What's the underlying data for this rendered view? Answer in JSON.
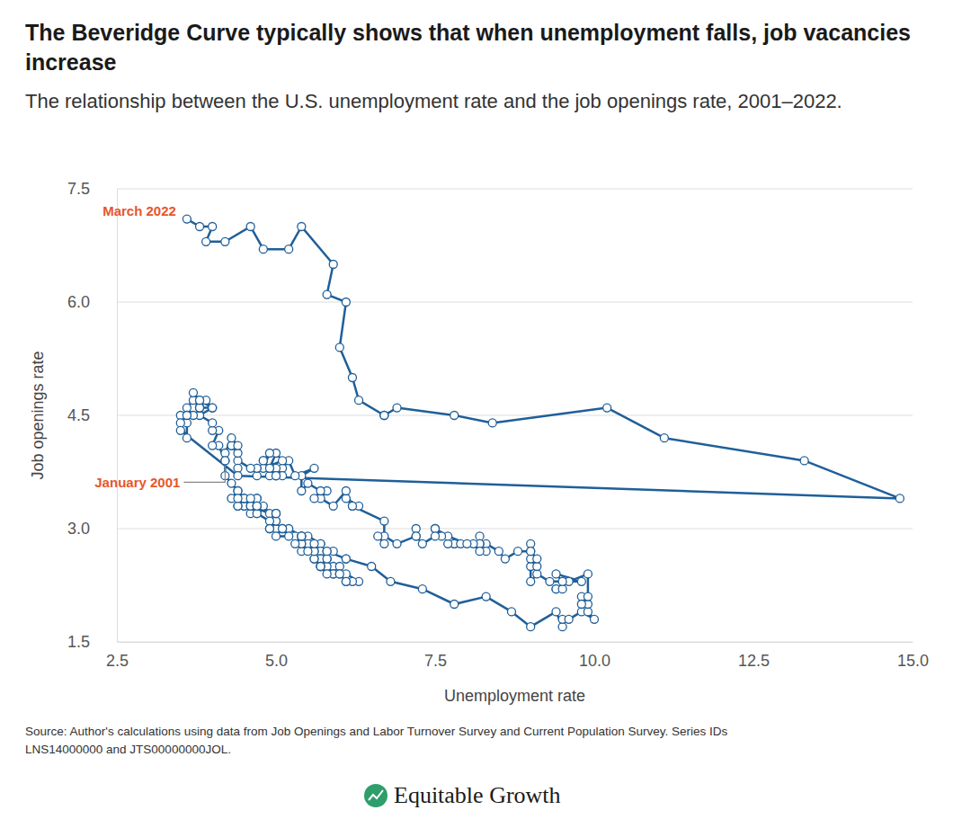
{
  "chart_data": {
    "type": "line",
    "title": "The Beveridge Curve typically shows that when unemployment falls, job vacancies increase",
    "subtitle": "The relationship between the U.S. unemployment rate and the job openings rate, 2001–2022.",
    "x_label": "Unemployment rate",
    "y_label": "Job openings rate",
    "source": [
      "Source: Author's calculations using data from Job Openings and Labor Turnover Survey and Current Population Survey. Series IDs",
      "LNS14000000 and JTS00000000JOL."
    ],
    "brand": "Equitable Growth",
    "color": "#1f5f99",
    "marker": "circle",
    "grid": true,
    "xlim": [
      2.5,
      15
    ],
    "ylim": [
      1.5,
      7.5
    ],
    "xticks": [
      2.5,
      {
        "value": 5,
        "label": "5.0"
      },
      7.5,
      {
        "value": 10,
        "label": "10.0"
      },
      12.5,
      {
        "value": 15,
        "label": "15.0"
      }
    ],
    "yticks": [
      1.5,
      {
        "value": 3,
        "label": "3.0"
      },
      4.5,
      {
        "value": 6,
        "label": "6.0"
      },
      7.5
    ],
    "annotations": [
      {
        "text": "March 2022",
        "x": 3.6,
        "y": 7.1,
        "color": "#e8562a"
      },
      {
        "text": "January 2001",
        "x": 4.2,
        "y": 3.9,
        "color": "#e8562a"
      }
    ],
    "x": [
      4.2,
      4.2,
      4.3,
      4.4,
      4.3,
      4.5,
      4.6,
      4.9,
      5.0,
      5.3,
      5.5,
      5.7,
      5.7,
      5.7,
      5.7,
      5.9,
      5.8,
      5.8,
      5.8,
      5.7,
      5.7,
      5.7,
      5.9,
      6.0,
      5.8,
      5.9,
      5.9,
      6.0,
      6.1,
      6.3,
      6.2,
      6.1,
      6.1,
      6.0,
      5.8,
      5.7,
      5.7,
      5.6,
      5.8,
      5.6,
      5.6,
      5.6,
      5.5,
      5.4,
      5.4,
      5.5,
      5.4,
      5.4,
      5.3,
      5.4,
      5.2,
      5.2,
      5.1,
      5.0,
      5.0,
      4.9,
      5.0,
      5.0,
      5.0,
      4.9,
      4.7,
      4.8,
      4.7,
      4.7,
      4.6,
      4.6,
      4.7,
      4.7,
      4.5,
      4.4,
      4.5,
      4.4,
      4.6,
      4.5,
      4.4,
      4.5,
      4.4,
      4.6,
      4.7,
      4.6,
      4.7,
      4.7,
      4.7,
      5.0,
      5.0,
      4.9,
      5.1,
      5.0,
      5.4,
      5.6,
      5.8,
      6.1,
      6.1,
      6.5,
      6.8,
      7.3,
      7.8,
      8.3,
      8.7,
      9.0,
      9.4,
      9.5,
      9.5,
      9.6,
      9.8,
      10.0,
      9.9,
      9.9,
      9.8,
      9.8,
      9.9,
      9.9,
      9.6,
      9.4,
      9.4,
      9.5,
      9.5,
      9.4,
      9.8,
      9.3,
      9.1,
      9.0,
      9.0,
      9.1,
      9.0,
      9.1,
      9.0,
      9.0,
      9.0,
      8.8,
      8.6,
      8.5,
      8.3,
      8.3,
      8.2,
      8.2,
      8.2,
      8.2,
      8.2,
      8.1,
      7.8,
      7.8,
      7.7,
      7.9,
      8.0,
      7.7,
      7.5,
      7.6,
      7.5,
      7.5,
      7.3,
      7.2,
      7.2,
      7.2,
      6.9,
      6.7,
      6.6,
      6.7,
      6.7,
      6.2,
      6.3,
      6.1,
      6.2,
      6.1,
      5.9,
      5.7,
      5.8,
      5.6,
      5.7,
      5.5,
      5.4,
      5.4,
      5.6,
      5.3,
      5.2,
      5.1,
      5.0,
      5.0,
      5.1,
      5.0,
      4.8,
      4.9,
      5.0,
      5.1,
      4.8,
      4.9,
      4.8,
      4.9,
      5.0,
      4.9,
      4.7,
      4.7,
      4.7,
      4.6,
      4.4,
      4.4,
      4.4,
      4.3,
      4.3,
      4.4,
      4.3,
      4.2,
      4.2,
      4.1,
      4.0,
      4.1,
      4.0,
      4.0,
      3.8,
      4.0,
      3.8,
      3.8,
      3.7,
      3.8,
      3.8,
      3.9,
      4.0,
      3.8,
      3.8,
      3.7,
      3.6,
      3.6,
      3.7,
      3.6,
      3.5,
      3.6,
      3.6,
      3.6,
      3.5,
      3.5,
      4.4,
      14.8,
      13.3,
      11.1,
      10.2,
      8.4,
      7.8,
      6.9,
      6.7,
      6.7,
      6.3,
      6.2,
      6.0,
      6.1,
      5.8,
      5.9,
      5.4,
      5.2,
      4.8,
      4.6,
      4.2,
      3.9,
      4.0,
      3.8,
      3.6
    ],
    "values": [
      3.9,
      3.7,
      3.6,
      3.5,
      3.4,
      3.3,
      3.3,
      3.2,
      3.0,
      2.9,
      2.9,
      2.8,
      2.8,
      2.7,
      2.6,
      2.7,
      2.7,
      2.6,
      2.6,
      2.6,
      2.6,
      2.5,
      2.5,
      2.5,
      2.5,
      2.4,
      2.4,
      2.4,
      2.4,
      2.3,
      2.3,
      2.3,
      2.3,
      2.4,
      2.4,
      2.5,
      2.5,
      2.6,
      2.6,
      2.6,
      2.7,
      2.7,
      2.8,
      2.7,
      2.8,
      2.7,
      2.8,
      2.9,
      2.8,
      2.9,
      3.0,
      2.9,
      3.0,
      3.0,
      3.1,
      3.0,
      3.2,
      3.1,
      3.2,
      3.1,
      3.2,
      3.3,
      3.3,
      3.4,
      3.2,
      3.3,
      3.4,
      3.4,
      3.3,
      3.3,
      3.4,
      3.3,
      3.3,
      3.4,
      3.5,
      3.4,
      3.4,
      3.3,
      3.3,
      3.4,
      3.2,
      3.3,
      3.3,
      3.2,
      3.2,
      3.0,
      3.0,
      2.9,
      2.9,
      2.8,
      2.7,
      2.6,
      2.6,
      2.5,
      2.3,
      2.2,
      2.0,
      2.1,
      1.9,
      1.7,
      1.9,
      1.7,
      1.8,
      1.8,
      1.9,
      1.8,
      1.9,
      2.0,
      2.1,
      2.0,
      2.1,
      2.4,
      2.3,
      2.2,
      2.2,
      2.2,
      2.3,
      2.4,
      2.3,
      2.3,
      2.4,
      2.3,
      2.5,
      2.5,
      2.6,
      2.6,
      2.7,
      2.8,
      2.7,
      2.7,
      2.6,
      2.7,
      2.8,
      2.7,
      2.9,
      2.8,
      2.8,
      2.8,
      2.7,
      2.8,
      2.8,
      2.8,
      2.8,
      2.8,
      2.8,
      2.9,
      3.0,
      2.9,
      3.0,
      2.9,
      2.8,
      2.9,
      3.0,
      2.9,
      2.8,
      2.9,
      2.9,
      2.8,
      3.1,
      3.3,
      3.3,
      3.4,
      3.3,
      3.5,
      3.3,
      3.4,
      3.5,
      3.4,
      3.5,
      3.6,
      3.5,
      3.7,
      3.8,
      3.7,
      3.9,
      3.8,
      3.7,
      3.8,
      3.7,
      3.7,
      3.9,
      3.8,
      4.0,
      3.9,
      3.8,
      4.0,
      3.9,
      3.7,
      3.7,
      3.8,
      3.8,
      3.7,
      3.8,
      3.8,
      3.9,
      3.8,
      4.0,
      4.1,
      4.1,
      4.1,
      4.2,
      4.0,
      3.9,
      4.1,
      4.1,
      4.3,
      4.3,
      4.4,
      4.5,
      4.6,
      4.6,
      4.6,
      4.7,
      4.6,
      4.6,
      4.7,
      4.6,
      4.7,
      4.7,
      4.8,
      4.5,
      4.6,
      4.5,
      4.5,
      4.5,
      4.4,
      4.5,
      4.2,
      4.4,
      4.3,
      3.7,
      3.4,
      3.9,
      4.2,
      4.6,
      4.4,
      4.5,
      4.6,
      4.5,
      4.5,
      4.7,
      5.0,
      5.4,
      6.0,
      6.1,
      6.5,
      7.0,
      6.7,
      6.7,
      7.0,
      6.8,
      6.8,
      7.0,
      7.0,
      7.1
    ]
  }
}
